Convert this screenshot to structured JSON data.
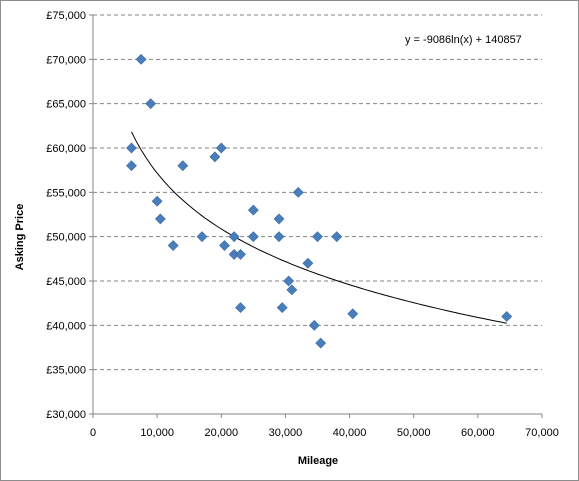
{
  "chart_data": {
    "type": "scatter",
    "title": "",
    "xlabel": "Mileage",
    "ylabel": "Asking Price",
    "xlim": [
      0,
      70000
    ],
    "ylim": [
      30000,
      75000
    ],
    "x_ticks": [
      0,
      10000,
      20000,
      30000,
      40000,
      50000,
      60000,
      70000
    ],
    "x_tick_labels": [
      "0",
      "10,000",
      "20,000",
      "30,000",
      "40,000",
      "50,000",
      "60,000",
      "70,000"
    ],
    "y_ticks": [
      30000,
      35000,
      40000,
      45000,
      50000,
      55000,
      60000,
      65000,
      70000,
      75000
    ],
    "y_tick_labels": [
      "£30,000",
      "£35,000",
      "£40,000",
      "£45,000",
      "£50,000",
      "£55,000",
      "£60,000",
      "£65,000",
      "£70,000",
      "£75,000"
    ],
    "grid": {
      "horizontal": true,
      "vertical": false,
      "style": "dashed"
    },
    "legend": "none",
    "marker": {
      "shape": "diamond",
      "color": "#4a7ebb"
    },
    "series": [
      {
        "points": [
          {
            "x": 6000,
            "y": 60000
          },
          {
            "x": 6000,
            "y": 58000
          },
          {
            "x": 7500,
            "y": 70000
          },
          {
            "x": 9000,
            "y": 65000
          },
          {
            "x": 10000,
            "y": 54000
          },
          {
            "x": 10500,
            "y": 52000
          },
          {
            "x": 12500,
            "y": 49000
          },
          {
            "x": 14000,
            "y": 58000
          },
          {
            "x": 17000,
            "y": 50000
          },
          {
            "x": 19000,
            "y": 59000
          },
          {
            "x": 20000,
            "y": 60000
          },
          {
            "x": 20500,
            "y": 49000
          },
          {
            "x": 22000,
            "y": 50000
          },
          {
            "x": 22000,
            "y": 48000
          },
          {
            "x": 23000,
            "y": 48000
          },
          {
            "x": 23000,
            "y": 42000
          },
          {
            "x": 25000,
            "y": 53000
          },
          {
            "x": 25000,
            "y": 50000
          },
          {
            "x": 29000,
            "y": 52000
          },
          {
            "x": 29000,
            "y": 50000
          },
          {
            "x": 29500,
            "y": 42000
          },
          {
            "x": 30500,
            "y": 45000
          },
          {
            "x": 31000,
            "y": 44000
          },
          {
            "x": 32000,
            "y": 55000
          },
          {
            "x": 33500,
            "y": 47000
          },
          {
            "x": 34500,
            "y": 40000
          },
          {
            "x": 35000,
            "y": 50000
          },
          {
            "x": 35500,
            "y": 38000
          },
          {
            "x": 38000,
            "y": 50000
          },
          {
            "x": 40500,
            "y": 41300
          },
          {
            "x": 64500,
            "y": 41000
          }
        ]
      }
    ],
    "trendline": {
      "type": "logarithmic",
      "a": -9086,
      "b": 140857,
      "x_range": [
        6000,
        64500
      ],
      "color": "#000000",
      "equation_label": "y = -9086ln(x) + 140857"
    }
  }
}
